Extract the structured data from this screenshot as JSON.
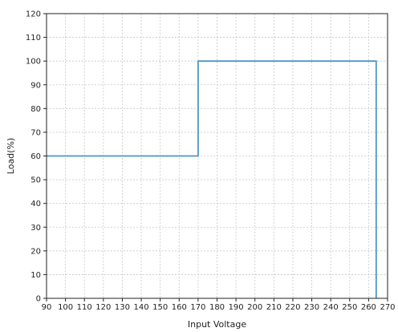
{
  "chart_data": {
    "type": "line",
    "title": "",
    "xlabel": "Input Voltage",
    "ylabel": "Load(%)",
    "xlim": [
      90,
      270
    ],
    "ylim": [
      0,
      120
    ],
    "x_ticks": [
      90,
      100,
      110,
      120,
      130,
      140,
      150,
      160,
      170,
      180,
      190,
      200,
      210,
      220,
      230,
      240,
      250,
      260,
      270
    ],
    "y_ticks": [
      0,
      10,
      20,
      30,
      40,
      50,
      60,
      70,
      80,
      90,
      100,
      110,
      120
    ],
    "grid": true,
    "colors": {
      "series": "#4f95c8",
      "grid": "#c8c8c8",
      "axis": "#222222"
    },
    "series": [
      {
        "x": [
          90,
          170,
          170,
          264,
          264
        ],
        "y": [
          60,
          60,
          100,
          100,
          0
        ]
      }
    ]
  }
}
